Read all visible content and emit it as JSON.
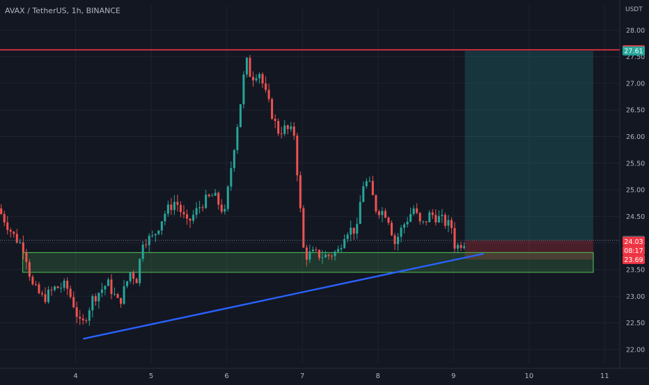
{
  "header": {
    "symbol_line": "AVAX / TetherUS, 1h, BINANCE"
  },
  "axis": {
    "currency": "USDT"
  },
  "colors": {
    "background": "#131722",
    "grid": "#1f2330",
    "text": "#b2b5be",
    "up": "#26a69a",
    "down": "#ef5350",
    "resistance": "#f23645",
    "trendline": "#2962ff",
    "zone_border": "#4caf50",
    "zone_fill": "rgba(76,175,80,0.22)",
    "profit_fill": "rgba(38,166,154,0.22)",
    "loss_fill": "rgba(242,54,69,0.25)"
  },
  "chart_data": {
    "type": "candlestick",
    "timeframe": "1h",
    "x_ticks": [
      "4",
      "5",
      "6",
      "7",
      "8",
      "9",
      "10",
      "11"
    ],
    "x_tick_days": [
      4,
      5,
      6,
      7,
      8,
      9,
      10,
      11
    ],
    "xlim": [
      3.0,
      11.2
    ],
    "ylim": [
      21.75,
      28.2
    ],
    "y_ticks": [
      "22.00",
      "22.50",
      "23.00",
      "23.50",
      "24.00",
      "24.50",
      "25.00",
      "25.50",
      "26.00",
      "26.50",
      "27.00",
      "27.50",
      "28.00"
    ],
    "y_tick_values": [
      22.0,
      22.5,
      23.0,
      23.5,
      24.0,
      24.5,
      25.0,
      25.5,
      26.0,
      26.5,
      27.0,
      27.5,
      28.0
    ],
    "grid": true,
    "anchors": [
      [
        3.0,
        24.65
      ],
      [
        3.2,
        24.15
      ],
      [
        3.35,
        23.9
      ],
      [
        3.45,
        23.2
      ],
      [
        3.6,
        22.95
      ],
      [
        3.75,
        23.15
      ],
      [
        3.9,
        23.2
      ],
      [
        4.0,
        22.85
      ],
      [
        4.1,
        22.4
      ],
      [
        4.25,
        22.95
      ],
      [
        4.45,
        23.25
      ],
      [
        4.6,
        22.85
      ],
      [
        4.75,
        23.45
      ],
      [
        4.85,
        23.3
      ],
      [
        4.9,
        24.05
      ],
      [
        5.05,
        24.1
      ],
      [
        5.2,
        24.55
      ],
      [
        5.35,
        24.8
      ],
      [
        5.5,
        24.35
      ],
      [
        5.7,
        24.75
      ],
      [
        5.85,
        24.9
      ],
      [
        6.0,
        24.55
      ],
      [
        6.1,
        25.6
      ],
      [
        6.2,
        26.55
      ],
      [
        6.28,
        27.45
      ],
      [
        6.35,
        27.1
      ],
      [
        6.45,
        27.25
      ],
      [
        6.55,
        26.75
      ],
      [
        6.7,
        26.1
      ],
      [
        6.8,
        26.15
      ],
      [
        6.92,
        26.05
      ],
      [
        7.0,
        24.6
      ],
      [
        7.05,
        23.75
      ],
      [
        7.15,
        23.8
      ],
      [
        7.35,
        23.75
      ],
      [
        7.5,
        23.85
      ],
      [
        7.6,
        24.25
      ],
      [
        7.75,
        24.25
      ],
      [
        7.82,
        25.1
      ],
      [
        7.9,
        25.15
      ],
      [
        8.0,
        24.65
      ],
      [
        8.15,
        24.55
      ],
      [
        8.25,
        24.0
      ],
      [
        8.35,
        24.3
      ],
      [
        8.5,
        24.65
      ],
      [
        8.6,
        24.3
      ],
      [
        8.72,
        24.55
      ],
      [
        8.85,
        24.45
      ],
      [
        9.0,
        24.3
      ],
      [
        9.05,
        23.9
      ],
      [
        9.15,
        24.03
      ]
    ],
    "last_candle_day": 9.15,
    "levels": {
      "resistance": 27.63,
      "take_profit": 27.61,
      "entry": 24.05,
      "stop": 23.69
    },
    "zone": {
      "low": 23.45,
      "high": 23.82,
      "start": 3.3,
      "end": 10.85
    },
    "trendline": {
      "from": [
        4.1,
        22.2
      ],
      "to": [
        9.4,
        23.8
      ]
    },
    "position": {
      "start": 9.15,
      "end": 10.85
    },
    "price_labels": [
      {
        "value": "27.63",
        "price": 27.63,
        "bg": "#f23645",
        "fg": "#ffffff"
      },
      {
        "value": "27.61",
        "price": 27.61,
        "bg": "#26a69a",
        "fg": "#ffffff"
      },
      {
        "value": "24.05",
        "price": 24.05,
        "bg": "#5d606b",
        "fg": "#ffffff"
      },
      {
        "value": "24.03",
        "price": 24.03,
        "bg": "#f23645",
        "fg": "#ffffff"
      },
      {
        "value": "08:17",
        "price": 23.86,
        "bg": "#f23645",
        "fg": "#ffffff"
      },
      {
        "value": "23.69",
        "price": 23.69,
        "bg": "#f23645",
        "fg": "#ffffff"
      }
    ]
  }
}
